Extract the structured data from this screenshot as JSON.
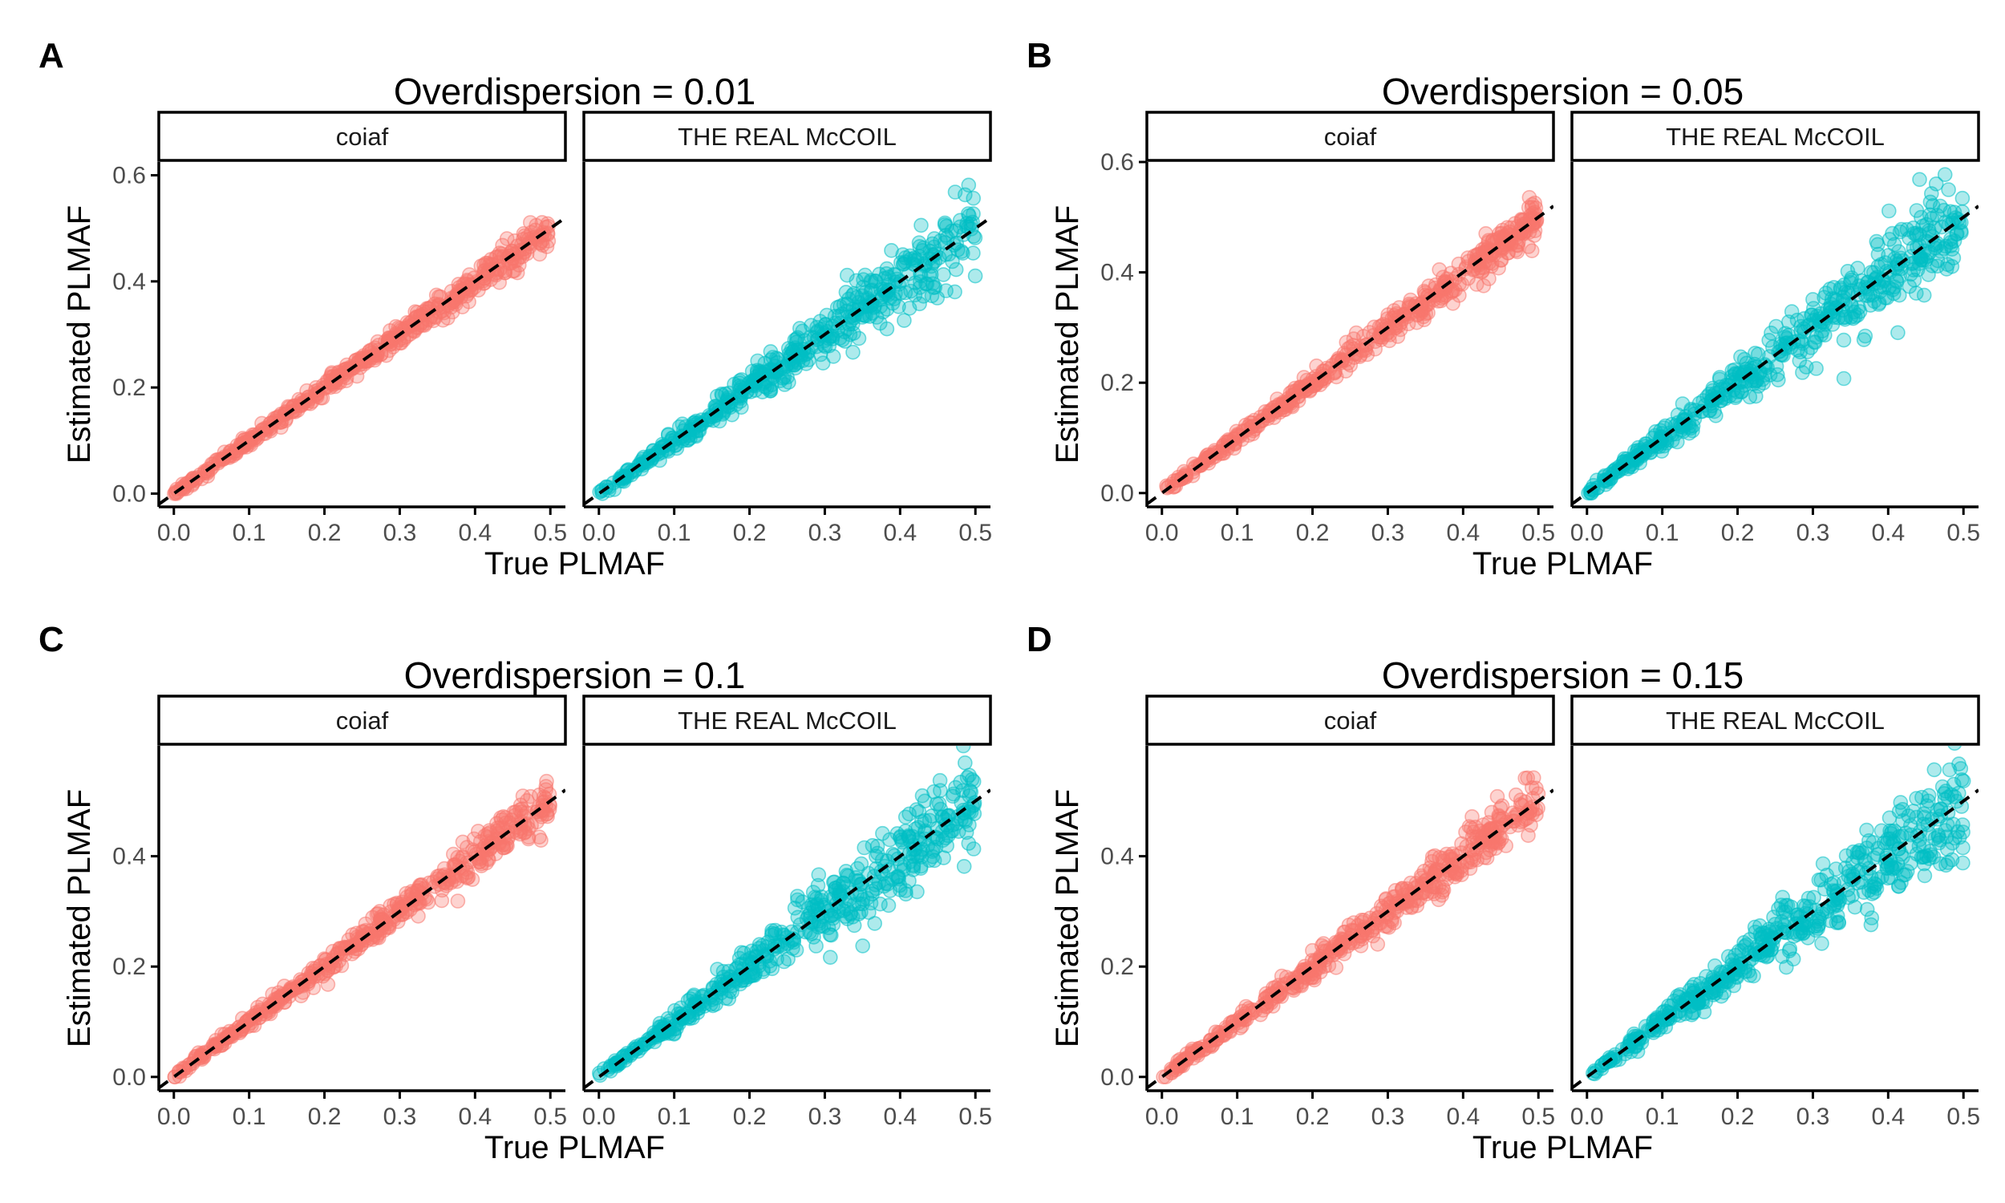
{
  "colors": {
    "coiaf": "#F8766D",
    "mccoil": "#00BFC4",
    "reference_line": "#000000",
    "axis": "#000000",
    "tick_text": "#4D4D4D"
  },
  "chart_data": [
    {
      "type": "scatter",
      "panel_label": "A",
      "title": "Overdispersion = 0.01",
      "xlabel": "True PLMAF",
      "ylabel": "Estimated PLMAF",
      "xlim": [
        -0.02,
        0.52
      ],
      "ylim": [
        -0.025,
        0.625
      ],
      "x_ticks": [
        "0.0",
        "0.1",
        "0.2",
        "0.3",
        "0.4",
        "0.5"
      ],
      "y_ticks": [
        "0.0",
        "0.2",
        "0.4",
        "0.6"
      ],
      "reference_line": "y = x (dashed)",
      "grid": false,
      "facets": [
        {
          "name": "coiaf",
          "n_points": 500,
          "x_range": [
            0,
            0.5
          ],
          "spread_vs_x": "tight, sd ≈ 0.03·x"
        },
        {
          "name": "THE REAL McCOIL",
          "n_points": 500,
          "x_range": [
            0,
            0.5
          ],
          "spread_vs_x": "widening, sd ≈ 0.07·x"
        }
      ]
    },
    {
      "type": "scatter",
      "panel_label": "B",
      "title": "Overdispersion = 0.05",
      "xlabel": "True PLMAF",
      "ylabel": "Estimated PLMAF",
      "xlim": [
        -0.02,
        0.52
      ],
      "ylim": [
        -0.025,
        0.6
      ],
      "x_ticks": [
        "0.0",
        "0.1",
        "0.2",
        "0.3",
        "0.4",
        "0.5"
      ],
      "y_ticks": [
        "0.0",
        "0.2",
        "0.4",
        "0.6"
      ],
      "reference_line": "y = x (dashed)",
      "grid": false,
      "facets": [
        {
          "name": "coiaf",
          "n_points": 500,
          "x_range": [
            0,
            0.5
          ],
          "spread_vs_x": "tight, sd ≈ 0.035·x"
        },
        {
          "name": "THE REAL McCOIL",
          "n_points": 500,
          "x_range": [
            0,
            0.5
          ],
          "spread_vs_x": "widening, sd ≈ 0.08·x"
        }
      ]
    },
    {
      "type": "scatter",
      "panel_label": "C",
      "title": "Overdispersion = 0.1",
      "xlabel": "True PLMAF",
      "ylabel": "Estimated PLMAF",
      "xlim": [
        -0.02,
        0.52
      ],
      "ylim": [
        -0.025,
        0.6
      ],
      "x_ticks": [
        "0.0",
        "0.1",
        "0.2",
        "0.3",
        "0.4",
        "0.5"
      ],
      "y_ticks": [
        "0.0",
        "0.2",
        "0.4"
      ],
      "reference_line": "y = x (dashed)",
      "grid": false,
      "facets": [
        {
          "name": "coiaf",
          "n_points": 500,
          "x_range": [
            0,
            0.5
          ],
          "spread_vs_x": "tight, sd ≈ 0.04·x"
        },
        {
          "name": "THE REAL McCOIL",
          "n_points": 500,
          "x_range": [
            0,
            0.5
          ],
          "spread_vs_x": "widening, sd ≈ 0.08·x"
        }
      ]
    },
    {
      "type": "scatter",
      "panel_label": "D",
      "title": "Overdispersion = 0.15",
      "xlabel": "True PLMAF",
      "ylabel": "Estimated PLMAF",
      "xlim": [
        -0.02,
        0.52
      ],
      "ylim": [
        -0.025,
        0.6
      ],
      "x_ticks": [
        "0.0",
        "0.1",
        "0.2",
        "0.3",
        "0.4",
        "0.5"
      ],
      "y_ticks": [
        "0.0",
        "0.2",
        "0.4"
      ],
      "reference_line": "y = x (dashed)",
      "grid": false,
      "facets": [
        {
          "name": "coiaf",
          "n_points": 500,
          "x_range": [
            0,
            0.5
          ],
          "spread_vs_x": "tight, sd ≈ 0.045·x"
        },
        {
          "name": "THE REAL McCOIL",
          "n_points": 500,
          "x_range": [
            0,
            0.5
          ],
          "spread_vs_x": "widening, sd ≈ 0.085·x"
        }
      ]
    }
  ]
}
